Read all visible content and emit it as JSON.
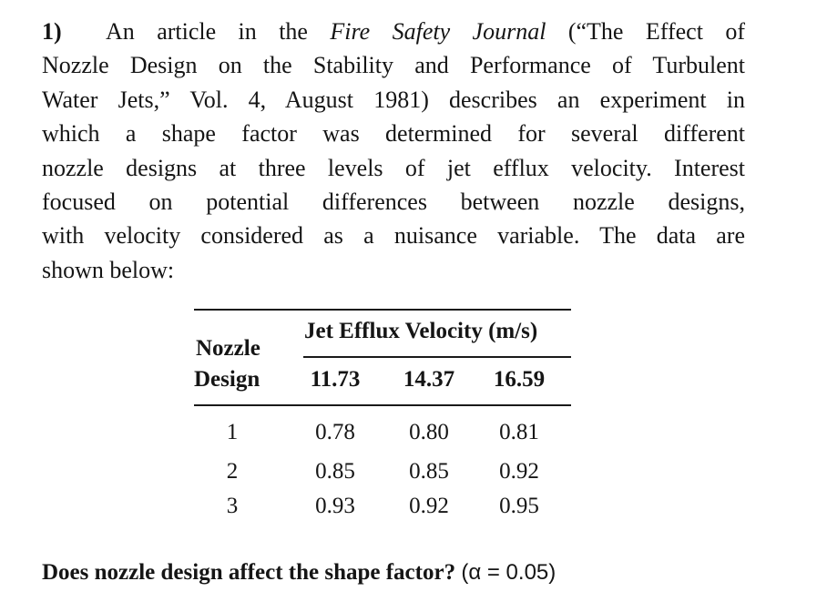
{
  "problem": {
    "number": "1)",
    "lines": [
      {
        "pre": "An article in the ",
        "italic": "Fire Safety Journal",
        "post": " (“The Effect of"
      },
      {
        "text": "Nozzle Design on the Stability and Performance of Turbulent"
      },
      {
        "text": "Water Jets,” Vol. 4, August 1981) describes an experiment in"
      },
      {
        "text": "which a shape factor was determined for several different"
      },
      {
        "text": "nozzle designs at three levels of jet efflux velocity. Interest"
      },
      {
        "text": "focused on potential differences between nozzle designs,"
      },
      {
        "text": "with velocity considered as a nuisance variable. The data are"
      },
      {
        "text": "shown below:"
      }
    ]
  },
  "table": {
    "row_header_line1": "Nozzle",
    "row_header_line2": "Design",
    "group_header": "Jet Efflux Velocity (m/s)",
    "columns": [
      "11.73",
      "14.37",
      "16.59"
    ],
    "rows": [
      {
        "design": "1",
        "values": [
          "0.78",
          "0.80",
          "0.81"
        ]
      },
      {
        "design": "2",
        "values": [
          "0.85",
          "0.85",
          "0.92"
        ]
      },
      {
        "design": "3",
        "values": [
          "0.93",
          "0.92",
          "0.95"
        ]
      }
    ]
  },
  "question": {
    "text": "Does nozzle design affect the shape factor? ",
    "alpha": "(α = 0.05)"
  }
}
